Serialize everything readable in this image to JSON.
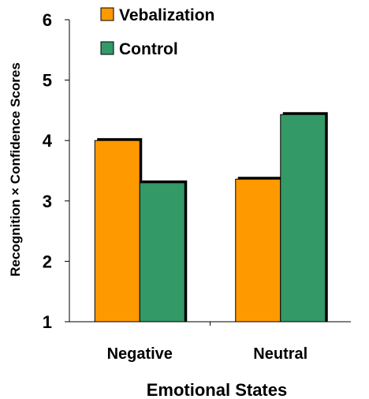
{
  "chart_data": {
    "type": "bar",
    "categories": [
      "Negative",
      "Neutral"
    ],
    "series": [
      {
        "name": "Vebalization",
        "values": [
          4.0,
          3.36
        ],
        "color": "#FF9900"
      },
      {
        "name": "Control",
        "values": [
          3.3,
          4.43
        ],
        "color": "#339966"
      }
    ],
    "title": "",
    "xlabel": "Emotional States",
    "ylabel": "Recognition × Confidence Scores",
    "ylim": [
      1,
      6
    ],
    "yticks": [
      1,
      2,
      3,
      4,
      5,
      6
    ],
    "grid": false,
    "legend_position": "top-left"
  }
}
